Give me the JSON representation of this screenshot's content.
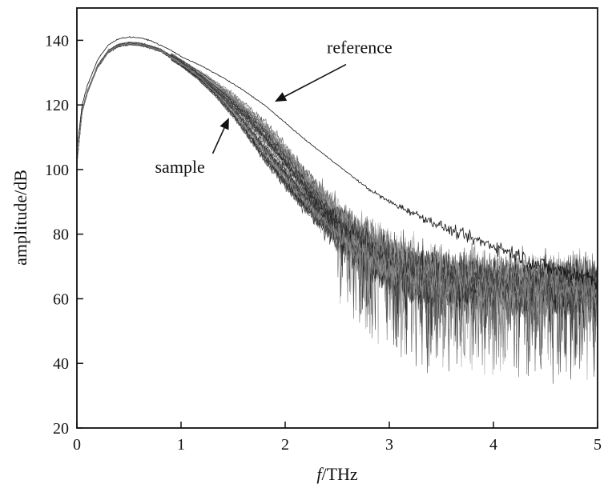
{
  "chart_data": {
    "type": "line",
    "xlabel_italic": "f",
    "xlabel_rest": "/THz",
    "ylabel": "amplitude/dB",
    "xlim": [
      0,
      5
    ],
    "ylim": [
      20,
      150
    ],
    "xticks": [
      0,
      1,
      2,
      3,
      4,
      5
    ],
    "yticks": [
      20,
      40,
      60,
      80,
      100,
      120,
      140
    ],
    "grid": false,
    "legend": "none",
    "colors": {
      "reference": "#111111",
      "sample_dark": "#222222",
      "sample_mid": "#555555",
      "sample_light": "#9a9a9a"
    },
    "annotations": [
      {
        "text": "reference",
        "target": [
          1.9,
          121
        ],
        "label_at": [
          2.4,
          136
        ]
      },
      {
        "text": "sample",
        "target": [
          1.46,
          116
        ],
        "label_at": [
          0.75,
          99
        ]
      }
    ],
    "series": [
      {
        "role": "reference",
        "x": [
          0,
          0.05,
          0.1,
          0.2,
          0.3,
          0.4,
          0.5,
          0.6,
          0.7,
          0.8,
          0.9,
          1.0,
          1.2,
          1.4,
          1.6,
          1.8,
          2.0,
          2.2,
          2.4,
          2.6,
          2.8,
          3.0,
          3.2,
          3.4,
          3.6,
          3.8,
          4.0,
          4.2,
          4.4,
          4.6,
          4.8,
          5.0
        ],
        "y": [
          106,
          120,
          126,
          134,
          138.5,
          140.5,
          141,
          140.8,
          140,
          138.5,
          137,
          135,
          132,
          128.5,
          124.5,
          120,
          114.5,
          109,
          104,
          99,
          94,
          90,
          87,
          84,
          81,
          78.5,
          76.5,
          74,
          71,
          69,
          67.5,
          66
        ]
      },
      {
        "role": "sample",
        "x": [
          0,
          0.05,
          0.1,
          0.2,
          0.3,
          0.4,
          0.5,
          0.6,
          0.7,
          0.8,
          0.9,
          1.0,
          1.2,
          1.4,
          1.6,
          1.8,
          2.0,
          2.2,
          2.4,
          2.6,
          2.8,
          3.0,
          3.2,
          3.4,
          3.6,
          3.8,
          4.0,
          4.2,
          4.4,
          4.6,
          4.8,
          5.0
        ],
        "y": [
          102,
          118,
          124,
          132,
          136.5,
          138.5,
          139,
          138.8,
          138,
          137,
          135,
          133,
          128.5,
          123,
          116.5,
          109,
          101,
          93,
          86,
          80,
          75,
          71,
          68,
          66.5,
          65.5,
          65,
          64.5,
          64,
          64,
          64,
          64,
          63.5
        ]
      }
    ]
  }
}
